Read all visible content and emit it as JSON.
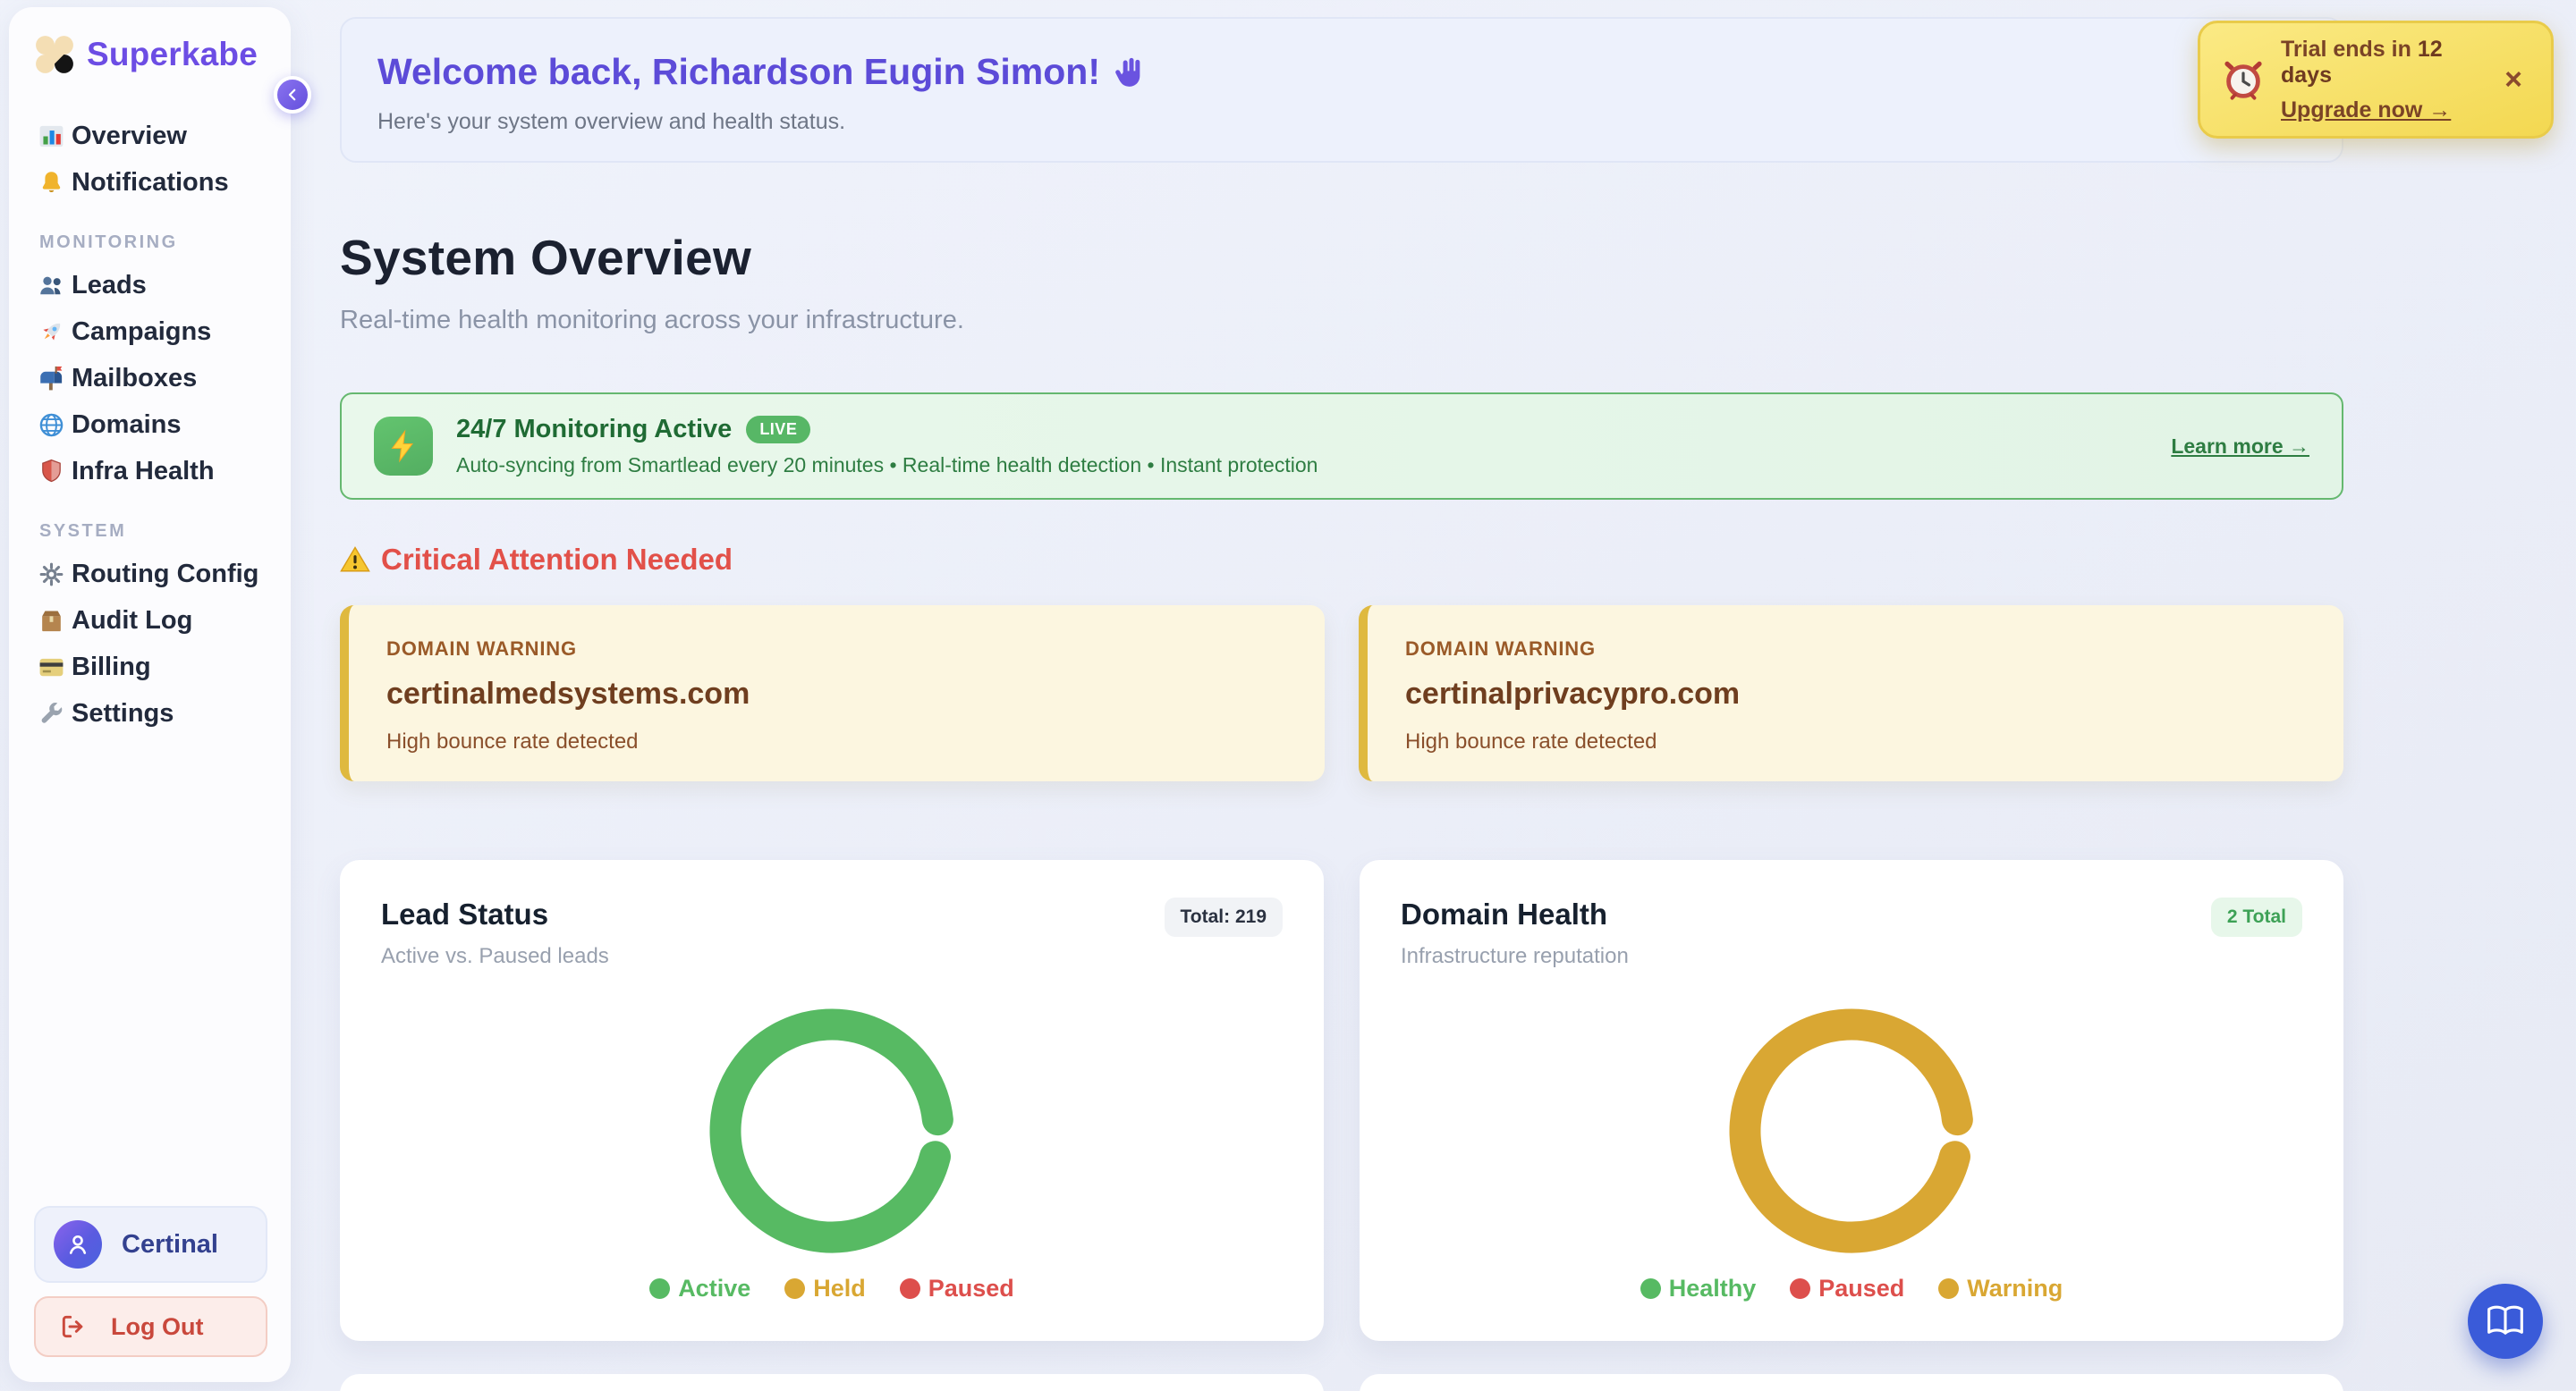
{
  "brand": {
    "name": "Superkabe",
    "logo_icon": "four-dot-flower-logo"
  },
  "sidebar": {
    "sections": [
      {
        "header": "",
        "items": [
          {
            "icon": "bar-chart-icon",
            "label": "Overview"
          },
          {
            "icon": "bell-icon",
            "label": "Notifications"
          }
        ]
      },
      {
        "header": "MONITORING",
        "items": [
          {
            "icon": "people-icon",
            "label": "Leads"
          },
          {
            "icon": "rocket-icon",
            "label": "Campaigns"
          },
          {
            "icon": "mailbox-icon",
            "label": "Mailboxes"
          },
          {
            "icon": "globe-icon",
            "label": "Domains"
          },
          {
            "icon": "shield-icon",
            "label": "Infra Health"
          }
        ]
      },
      {
        "header": "SYSTEM",
        "items": [
          {
            "icon": "gear-icon",
            "label": "Routing Config"
          },
          {
            "icon": "box-icon",
            "label": "Audit Log"
          },
          {
            "icon": "credit-card-icon",
            "label": "Billing"
          },
          {
            "icon": "wrench-icon",
            "label": "Settings"
          }
        ]
      }
    ],
    "user": {
      "name": "Certinal",
      "avatar_icon": "person-icon"
    },
    "logout_label": "Log Out"
  },
  "toast": {
    "icon": "alarm-clock-icon",
    "text_prefix": "Trial ends in ",
    "days": "12 days",
    "link_label": "Upgrade now →",
    "close_label": "×"
  },
  "welcome": {
    "title": "Welcome back, Richardson Eugin Simon!",
    "wave_icon": "waving-hand-icon",
    "subtitle": "Here's your system overview and health status."
  },
  "page": {
    "title": "System Overview",
    "subtitle": "Real-time health monitoring across your infrastructure."
  },
  "monitoring_banner": {
    "icon": "lightning-bolt-icon",
    "title": "24/7 Monitoring Active",
    "badge": "LIVE",
    "description": "Auto-syncing from Smartlead every 20 minutes • Real-time health detection • Instant protection",
    "link_label": "Learn more →"
  },
  "critical": {
    "icon": "warning-triangle-icon",
    "title": "Critical Attention Needed",
    "warnings": [
      {
        "tag": "DOMAIN WARNING",
        "domain": "certinalmedsystems.com",
        "message": "High bounce rate detected"
      },
      {
        "tag": "DOMAIN WARNING",
        "domain": "certinalprivacypro.com",
        "message": "High bounce rate detected"
      }
    ]
  },
  "chart_data": [
    {
      "id": "lead_status",
      "type": "donut",
      "title": "Lead Status",
      "subtitle": "Active vs. Paused leads",
      "badge": "Total: 219",
      "total": 219,
      "legend_position": "bottom",
      "segments": [
        {
          "label": "Active",
          "value": 219,
          "color": "#57BA63"
        },
        {
          "label": "Held",
          "value": 0,
          "color": "#D9A733"
        },
        {
          "label": "Paused",
          "value": 0,
          "color": "#DD4F4C"
        }
      ]
    },
    {
      "id": "domain_health",
      "type": "donut",
      "title": "Domain Health",
      "subtitle": "Infrastructure reputation",
      "badge": "2 Total",
      "total": 2,
      "legend_position": "bottom",
      "segments": [
        {
          "label": "Healthy",
          "value": 0,
          "color": "#57BA63"
        },
        {
          "label": "Paused",
          "value": 0,
          "color": "#DD4F4C"
        },
        {
          "label": "Warning",
          "value": 2,
          "color": "#D9A733"
        }
      ]
    }
  ],
  "fab": {
    "icon": "open-book-icon"
  },
  "colors": {
    "accent_purple": "#6C4DE4",
    "success_green": "#57BA63",
    "warning_gold": "#D9A733",
    "danger_red": "#DD4F4C",
    "fab_blue": "#3A5BD9"
  }
}
